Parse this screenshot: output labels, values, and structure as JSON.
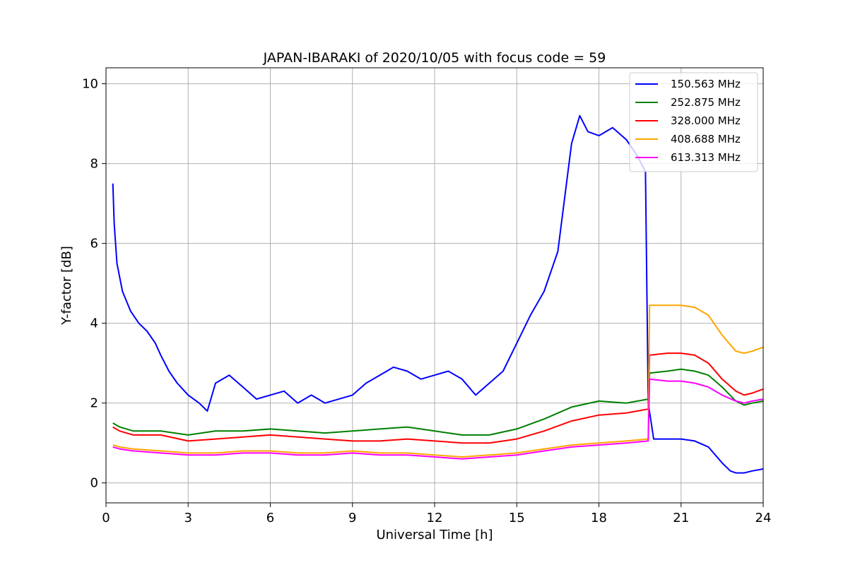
{
  "chart_data": {
    "type": "line",
    "title": "JAPAN-IBARAKI of 2020/10/05 with focus code = 59",
    "xlabel": "Universal Time [h]",
    "ylabel": "Y-factor [dB]",
    "xlim": [
      0,
      24
    ],
    "ylim": [
      -0.5,
      10.4
    ],
    "xticks": [
      0,
      3,
      6,
      9,
      12,
      15,
      18,
      21,
      24
    ],
    "yticks": [
      0,
      2,
      4,
      6,
      8,
      10
    ],
    "grid": true,
    "legend_position": "top-right",
    "series": [
      {
        "name": "150.563 MHz",
        "color": "#0000ff",
        "x": [
          0.25,
          0.3,
          0.4,
          0.6,
          0.9,
          1.2,
          1.5,
          1.8,
          2.0,
          2.3,
          2.6,
          3.0,
          3.4,
          3.7,
          4.0,
          4.5,
          5.0,
          5.5,
          6.0,
          6.5,
          7.0,
          7.5,
          8.0,
          8.5,
          9.0,
          9.5,
          10.0,
          10.5,
          11.0,
          11.5,
          12.0,
          12.5,
          13.0,
          13.5,
          14.0,
          14.5,
          15.0,
          15.5,
          16.0,
          16.5,
          17.0,
          17.3,
          17.6,
          18.0,
          18.5,
          19.0,
          19.4,
          19.7,
          19.8,
          20.0,
          20.2,
          20.5,
          21.0,
          21.5,
          22.0,
          22.5,
          22.8,
          23.0,
          23.3,
          23.6,
          24.0
        ],
        "y": [
          7.5,
          6.5,
          5.5,
          4.8,
          4.3,
          4.0,
          3.8,
          3.5,
          3.2,
          2.8,
          2.5,
          2.2,
          2.0,
          1.8,
          2.5,
          2.7,
          2.4,
          2.1,
          2.2,
          2.3,
          2.0,
          2.2,
          2.0,
          2.1,
          2.2,
          2.5,
          2.7,
          2.9,
          2.8,
          2.6,
          2.7,
          2.8,
          2.6,
          2.2,
          2.5,
          2.8,
          3.5,
          4.2,
          4.8,
          5.8,
          8.5,
          9.2,
          8.8,
          8.7,
          8.9,
          8.6,
          8.2,
          7.8,
          2.0,
          1.1,
          1.1,
          1.1,
          1.1,
          1.05,
          0.9,
          0.5,
          0.3,
          0.25,
          0.25,
          0.3,
          0.35
        ]
      },
      {
        "name": "252.875 MHz",
        "color": "#008000",
        "x": [
          0.25,
          0.5,
          1.0,
          2.0,
          3.0,
          4.0,
          5.0,
          6.0,
          7.0,
          8.0,
          9.0,
          10.0,
          11.0,
          12.0,
          13.0,
          14.0,
          15.0,
          16.0,
          17.0,
          18.0,
          19.0,
          19.8,
          19.85,
          20.5,
          21.0,
          21.5,
          22.0,
          22.5,
          23.0,
          23.3,
          23.6,
          24.0
        ],
        "y": [
          1.5,
          1.4,
          1.3,
          1.3,
          1.2,
          1.3,
          1.3,
          1.35,
          1.3,
          1.25,
          1.3,
          1.35,
          1.4,
          1.3,
          1.2,
          1.2,
          1.35,
          1.6,
          1.9,
          2.05,
          2.0,
          2.1,
          2.75,
          2.8,
          2.85,
          2.8,
          2.7,
          2.4,
          2.05,
          1.95,
          2.0,
          2.05
        ]
      },
      {
        "name": "328.000 MHz",
        "color": "#ff0000",
        "x": [
          0.25,
          0.5,
          1.0,
          2.0,
          3.0,
          4.0,
          5.0,
          6.0,
          7.0,
          8.0,
          9.0,
          10.0,
          11.0,
          12.0,
          13.0,
          14.0,
          15.0,
          16.0,
          17.0,
          18.0,
          19.0,
          19.8,
          19.85,
          20.5,
          21.0,
          21.5,
          22.0,
          22.5,
          23.0,
          23.3,
          23.6,
          24.0
        ],
        "y": [
          1.4,
          1.3,
          1.2,
          1.2,
          1.05,
          1.1,
          1.15,
          1.2,
          1.15,
          1.1,
          1.05,
          1.05,
          1.1,
          1.05,
          1.0,
          1.0,
          1.1,
          1.3,
          1.55,
          1.7,
          1.75,
          1.85,
          3.2,
          3.25,
          3.25,
          3.2,
          3.0,
          2.6,
          2.3,
          2.2,
          2.25,
          2.35
        ]
      },
      {
        "name": "408.688 MHz",
        "color": "#ffa500",
        "x": [
          0.25,
          0.5,
          1.0,
          2.0,
          3.0,
          4.0,
          5.0,
          6.0,
          7.0,
          8.0,
          9.0,
          10.0,
          11.0,
          12.0,
          13.0,
          14.0,
          15.0,
          16.0,
          17.0,
          18.0,
          19.0,
          19.8,
          19.85,
          20.5,
          21.0,
          21.5,
          22.0,
          22.5,
          23.0,
          23.3,
          23.6,
          24.0
        ],
        "y": [
          0.95,
          0.9,
          0.85,
          0.8,
          0.75,
          0.75,
          0.8,
          0.8,
          0.75,
          0.75,
          0.8,
          0.75,
          0.75,
          0.7,
          0.65,
          0.7,
          0.75,
          0.85,
          0.95,
          1.0,
          1.05,
          1.1,
          4.45,
          4.45,
          4.45,
          4.4,
          4.2,
          3.7,
          3.3,
          3.25,
          3.3,
          3.4
        ]
      },
      {
        "name": "613.313 MHz",
        "color": "#ff00ff",
        "x": [
          0.25,
          0.5,
          1.0,
          2.0,
          3.0,
          4.0,
          5.0,
          6.0,
          7.0,
          8.0,
          9.0,
          10.0,
          11.0,
          12.0,
          13.0,
          14.0,
          15.0,
          16.0,
          17.0,
          18.0,
          19.0,
          19.8,
          19.85,
          20.5,
          21.0,
          21.5,
          22.0,
          22.5,
          23.0,
          23.3,
          23.6,
          24.0
        ],
        "y": [
          0.9,
          0.85,
          0.8,
          0.75,
          0.7,
          0.7,
          0.75,
          0.75,
          0.7,
          0.7,
          0.75,
          0.7,
          0.7,
          0.65,
          0.6,
          0.65,
          0.7,
          0.8,
          0.9,
          0.95,
          1.0,
          1.05,
          2.6,
          2.55,
          2.55,
          2.5,
          2.4,
          2.2,
          2.05,
          2.0,
          2.05,
          2.1
        ]
      }
    ]
  }
}
